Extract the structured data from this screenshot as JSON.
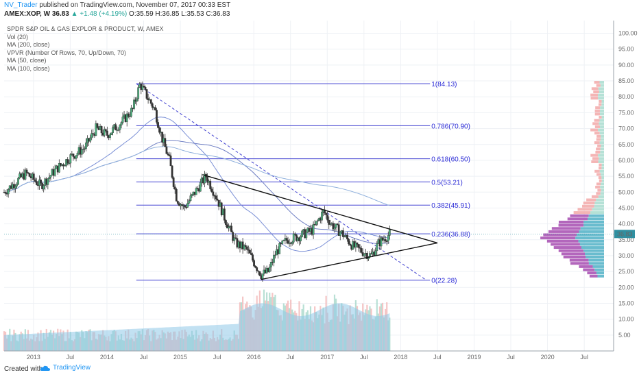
{
  "header": {
    "username": "NV_Trader",
    "published": " published on TradingView.com, November 07, 2017 00:33 EST",
    "symbol": "AMEX:XOP, W",
    "price": "36.83",
    "change": "▲ +1.48 (+4.19%)",
    "ohlc": "O:35.59 H:36.85 L:35.53 C:36.83"
  },
  "legend": [
    "SPDR S&P OIL & GAS EXPLOR & PRODUCT, W, AMEX",
    "Vol (20)",
    "MA (200, close)",
    "VPVR (Number Of Rows, 70, Up/Down, 70)",
    "MA (50, close)",
    "MA (100, close)"
  ],
  "footer": {
    "created": "Created with",
    "brand": "TradingView"
  },
  "colors": {
    "fib": "#3f3fd0",
    "up": "#26a69a",
    "down": "#ef5350",
    "ma": "#5b7fc7",
    "volume": "#8fc8e8",
    "vpvr_up": "#4fb0c6",
    "vpvr_down": "#a64bb0",
    "price_tag": "#2f8fa0"
  },
  "chart_data": {
    "type": "candlestick",
    "ylim": [
      0,
      104
    ],
    "y_ticks": [
      "100.00",
      "95.00",
      "90.00",
      "85.00",
      "80.00",
      "75.00",
      "70.00",
      "65.00",
      "60.00",
      "55.00",
      "50.00",
      "45.00",
      "40.00",
      "35.00",
      "30.00",
      "25.00",
      "20.00",
      "15.00",
      "10.00",
      "5.00"
    ],
    "x_ticks": [
      "2013",
      "Jul",
      "2014",
      "Jul",
      "2015",
      "Jul",
      "2016",
      "Jul",
      "2017",
      "Jul",
      "2018",
      "Jul",
      "2019",
      "Jul",
      "2020",
      "Jul"
    ],
    "last_price": "36.83",
    "fib_levels": [
      {
        "label": "1(84.13)",
        "value": 84.13
      },
      {
        "label": "0.786(70.90)",
        "value": 70.9
      },
      {
        "label": "0.618(60.50)",
        "value": 60.5
      },
      {
        "label": "0.5(53.21)",
        "value": 53.21
      },
      {
        "label": "0.382(45.91)",
        "value": 45.91
      },
      {
        "label": "0.236(36.88)",
        "value": 36.88
      },
      {
        "label": "0(22.28)",
        "value": 22.28
      }
    ],
    "price_path": [
      [
        2012.6,
        50
      ],
      [
        2012.9,
        56
      ],
      [
        2013.1,
        52
      ],
      [
        2013.3,
        57
      ],
      [
        2013.5,
        61
      ],
      [
        2013.7,
        64
      ],
      [
        2013.85,
        70
      ],
      [
        2014.0,
        68
      ],
      [
        2014.2,
        72
      ],
      [
        2014.35,
        76
      ],
      [
        2014.45,
        84
      ],
      [
        2014.55,
        80
      ],
      [
        2014.65,
        76
      ],
      [
        2014.75,
        67
      ],
      [
        2014.85,
        60
      ],
      [
        2014.95,
        48
      ],
      [
        2015.05,
        45
      ],
      [
        2015.2,
        50
      ],
      [
        2015.35,
        55
      ],
      [
        2015.5,
        48
      ],
      [
        2015.6,
        42
      ],
      [
        2015.75,
        34
      ],
      [
        2015.9,
        32
      ],
      [
        2016.0,
        28
      ],
      [
        2016.1,
        24
      ],
      [
        2016.2,
        25
      ],
      [
        2016.3,
        31
      ],
      [
        2016.45,
        35
      ],
      [
        2016.6,
        36
      ],
      [
        2016.8,
        38
      ],
      [
        2016.95,
        44
      ],
      [
        2017.05,
        40
      ],
      [
        2017.2,
        37
      ],
      [
        2017.35,
        33
      ],
      [
        2017.5,
        31
      ],
      [
        2017.6,
        30
      ],
      [
        2017.7,
        34
      ],
      [
        2017.85,
        36.8
      ]
    ]
  }
}
